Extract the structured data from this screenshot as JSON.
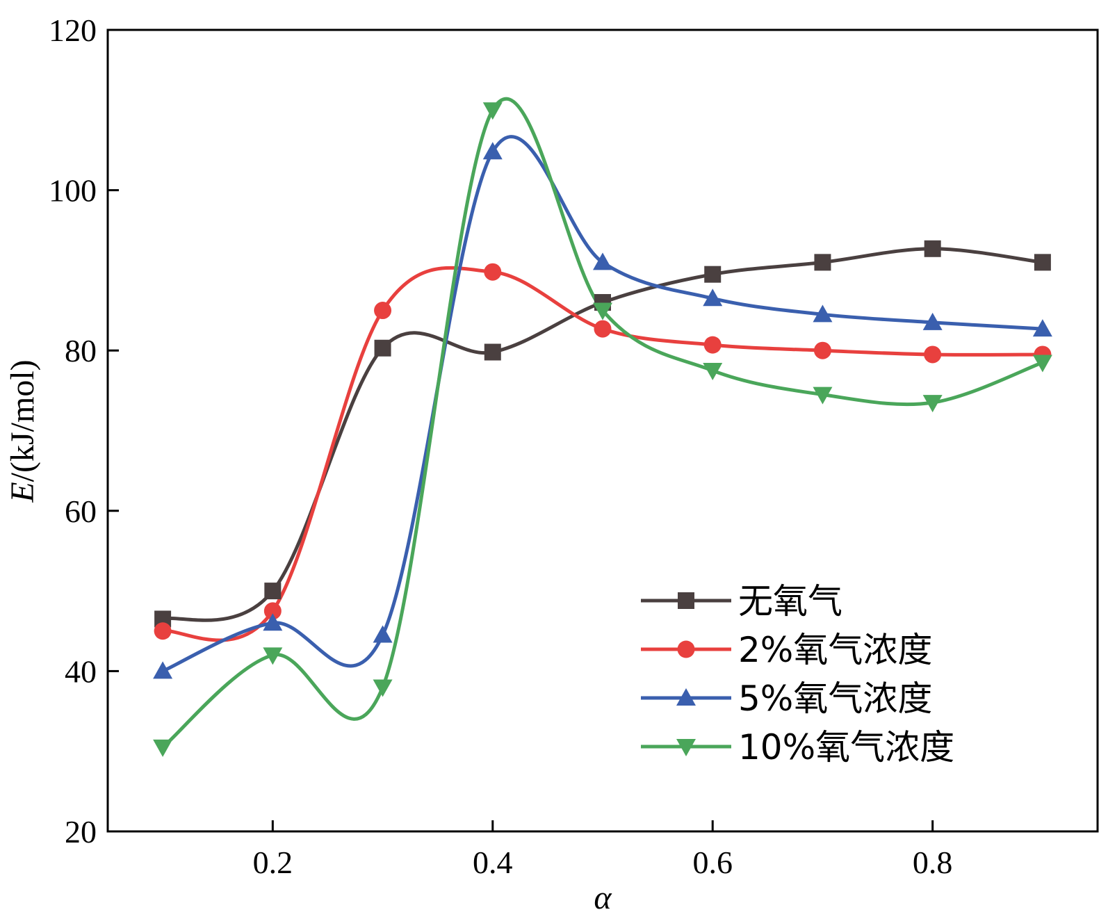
{
  "chart_data": {
    "type": "line",
    "title": "",
    "xlabel": "α",
    "ylabel_italic": "E",
    "ylabel_rest": "/(kJ/mol)",
    "xlim": [
      0.05,
      0.95
    ],
    "ylim": [
      20,
      120
    ],
    "xticks": [
      0.2,
      0.4,
      0.6,
      0.8
    ],
    "xtick_labels": [
      "0.2",
      "0.4",
      "0.6",
      "0.8"
    ],
    "yticks": [
      20,
      40,
      60,
      80,
      100,
      120
    ],
    "ytick_labels": [
      "20",
      "40",
      "60",
      "80",
      "100",
      "120"
    ],
    "grid": false,
    "legend_position": "bottom-right",
    "x": [
      0.1,
      0.2,
      0.3,
      0.4,
      0.5,
      0.6,
      0.7,
      0.8,
      0.9
    ],
    "series": [
      {
        "name": "无氧气",
        "marker": "square",
        "color": "#4a4040",
        "values": [
          46.5,
          50.0,
          80.3,
          79.8,
          86.0,
          89.5,
          91.0,
          92.7,
          91.0
        ]
      },
      {
        "name": "2%氧气浓度",
        "marker": "circle",
        "color": "#e8403e",
        "values": [
          45.0,
          47.5,
          85.0,
          89.8,
          82.7,
          80.7,
          80.0,
          79.5,
          79.5
        ]
      },
      {
        "name": "5%氧气浓度",
        "marker": "triangle-up",
        "color": "#3a5fae",
        "values": [
          40.0,
          46.0,
          44.5,
          104.8,
          91.0,
          86.5,
          84.5,
          83.5,
          82.7
        ]
      },
      {
        "name": "10%氧气浓度",
        "marker": "triangle-down",
        "color": "#4aa65a",
        "values": [
          30.5,
          42.0,
          38.0,
          110.0,
          85.0,
          77.5,
          74.5,
          73.5,
          78.5
        ]
      }
    ]
  }
}
